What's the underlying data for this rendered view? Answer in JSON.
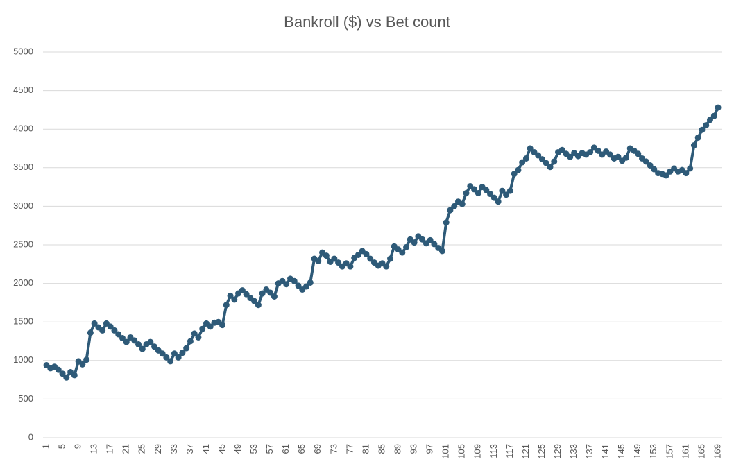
{
  "chart_data": {
    "type": "line",
    "title": "Bankroll ($) vs Bet count",
    "categories": [
      1,
      null,
      null,
      null,
      5,
      null,
      null,
      null,
      9,
      null,
      null,
      null,
      13,
      null,
      null,
      null,
      17,
      null,
      null,
      null,
      21,
      null,
      null,
      null,
      25,
      null,
      null,
      null,
      29,
      null,
      null,
      null,
      33,
      null,
      null,
      null,
      37,
      null,
      null,
      null,
      41,
      null,
      null,
      null,
      45,
      null,
      null,
      null,
      49,
      null,
      null,
      null,
      53,
      null,
      null,
      null,
      57,
      null,
      null,
      null,
      61,
      null,
      null,
      null,
      65,
      null,
      null,
      null,
      69,
      null,
      null,
      null,
      73,
      null,
      null,
      null,
      77,
      null,
      null,
      null,
      81,
      null,
      null,
      null,
      85,
      null,
      null,
      null,
      89,
      null,
      null,
      null,
      93,
      null,
      null,
      null,
      97,
      null,
      null,
      null,
      101,
      null,
      null,
      null,
      105,
      null,
      null,
      null,
      109,
      null,
      null,
      null,
      113,
      null,
      null,
      null,
      117,
      null,
      null,
      null,
      121,
      null,
      null,
      null,
      125,
      null,
      null,
      null,
      129,
      null,
      null,
      null,
      133,
      null,
      null,
      null,
      137,
      null,
      null,
      null,
      141,
      null,
      null,
      null,
      145,
      null,
      null,
      null,
      149,
      null,
      null,
      null,
      153,
      null,
      null,
      null,
      157,
      null,
      null,
      null,
      161,
      null,
      null,
      null,
      165,
      null,
      null,
      null,
      169
    ],
    "series": [
      {
        "color": "#2e5a78",
        "values": [
          940,
          900,
          920,
          880,
          830,
          780,
          850,
          810,
          990,
          950,
          1010,
          1360,
          1480,
          1430,
          1390,
          1480,
          1440,
          1390,
          1340,
          1290,
          1240,
          1300,
          1260,
          1210,
          1150,
          1210,
          1240,
          1180,
          1130,
          1090,
          1040,
          990,
          1090,
          1040,
          1100,
          1160,
          1250,
          1350,
          1300,
          1410,
          1480,
          1440,
          1490,
          1500,
          1460,
          1720,
          1840,
          1790,
          1870,
          1910,
          1860,
          1810,
          1770,
          1720,
          1870,
          1920,
          1880,
          1830,
          2000,
          2030,
          1990,
          2060,
          2030,
          1970,
          1920,
          1960,
          2010,
          2320,
          2290,
          2400,
          2360,
          2280,
          2320,
          2270,
          2220,
          2260,
          2220,
          2330,
          2370,
          2420,
          2380,
          2320,
          2270,
          2230,
          2260,
          2220,
          2320,
          2480,
          2440,
          2400,
          2470,
          2570,
          2530,
          2610,
          2570,
          2520,
          2560,
          2510,
          2460,
          2420,
          2790,
          2950,
          3000,
          3060,
          3030,
          3170,
          3260,
          3220,
          3170,
          3250,
          3210,
          3160,
          3110,
          3060,
          3200,
          3150,
          3200,
          3420,
          3470,
          3570,
          3620,
          3750,
          3700,
          3660,
          3610,
          3560,
          3510,
          3580,
          3700,
          3730,
          3680,
          3640,
          3690,
          3650,
          3690,
          3670,
          3700,
          3760,
          3720,
          3670,
          3710,
          3670,
          3620,
          3640,
          3590,
          3630,
          3750,
          3720,
          3680,
          3620,
          3580,
          3530,
          3480,
          3430,
          3420,
          3400,
          3450,
          3490,
          3450,
          3470,
          3430,
          3490,
          3790,
          3890,
          3990,
          4050,
          4120,
          4170,
          4280
        ]
      }
    ],
    "ylim": [
      0,
      5000
    ],
    "yticks": [
      0,
      500,
      1000,
      1500,
      2000,
      2500,
      3000,
      3500,
      4000,
      4500,
      5000
    ],
    "grid": true
  }
}
